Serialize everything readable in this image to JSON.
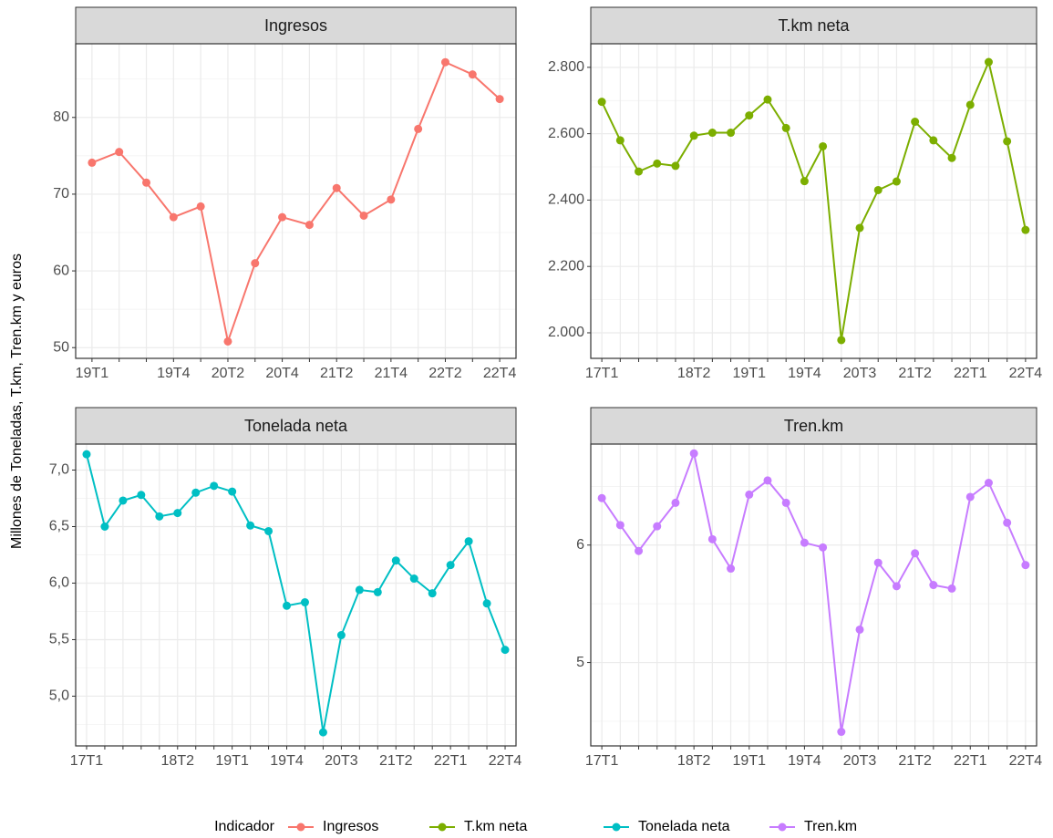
{
  "chart_data": [
    {
      "type": "line",
      "title": "Ingresos",
      "categories": [
        "19T1",
        null,
        null,
        "19T4",
        null,
        "20T2",
        null,
        "20T4",
        null,
        "21T2",
        null,
        "21T4",
        null,
        "22T2",
        null,
        "22T4"
      ],
      "series": [
        {
          "name": "Ingresos",
          "color": "#F8766D",
          "values": [
            74.1,
            75.5,
            71.5,
            67.0,
            68.4,
            50.8,
            61.0,
            67.0,
            66.0,
            70.8,
            67.2,
            69.3,
            78.5,
            87.2,
            85.6,
            82.4
          ]
        }
      ],
      "ylim": [
        48.6,
        89.6
      ],
      "yticks": [
        50,
        60,
        70,
        80
      ],
      "grid": true
    },
    {
      "type": "line",
      "title": "T.km neta",
      "categories": [
        "17T1",
        null,
        null,
        null,
        null,
        "18T2",
        null,
        null,
        "19T1",
        null,
        null,
        "19T4",
        null,
        null,
        "20T3",
        null,
        null,
        "21T2",
        null,
        null,
        "22T1",
        null,
        null,
        "22T4"
      ],
      "series": [
        {
          "name": "T.km neta",
          "color": "#7CAE00",
          "values": [
            2696,
            2580,
            2486,
            2510,
            2503,
            2594,
            2603,
            2603,
            2655,
            2703,
            2617,
            2457,
            2562,
            1978,
            2316,
            2430,
            2456,
            2636,
            2580,
            2527,
            2687,
            2816,
            2577,
            2310
          ]
        }
      ],
      "ylim": [
        1923,
        2871
      ],
      "yticks": [
        {
          "value": 2000,
          "label": "2.000"
        },
        {
          "value": 2200,
          "label": "2.200"
        },
        {
          "value": 2400,
          "label": "2.400"
        },
        {
          "value": 2600,
          "label": "2.600"
        },
        {
          "value": 2800,
          "label": "2.800"
        }
      ],
      "grid": true
    },
    {
      "type": "line",
      "title": "Tonelada neta",
      "categories": [
        "17T1",
        null,
        null,
        null,
        null,
        "18T2",
        null,
        null,
        "19T1",
        null,
        null,
        "19T4",
        null,
        null,
        "20T3",
        null,
        null,
        "21T2",
        null,
        null,
        "22T1",
        null,
        null,
        "22T4"
      ],
      "series": [
        {
          "name": "Tonelada neta",
          "color": "#00BFC4",
          "values": [
            7.14,
            6.5,
            6.73,
            6.78,
            6.59,
            6.62,
            6.8,
            6.86,
            6.81,
            6.51,
            6.46,
            5.8,
            5.83,
            4.68,
            5.54,
            5.94,
            5.92,
            6.2,
            6.04,
            5.91,
            6.16,
            6.37,
            5.82,
            5.41
          ]
        }
      ],
      "ylim": [
        4.56,
        7.23
      ],
      "yticks": [
        {
          "value": 5,
          "label": "5,0"
        },
        {
          "value": 5.5,
          "label": "5,5"
        },
        {
          "value": 6,
          "label": "6,0"
        },
        {
          "value": 6.5,
          "label": "6,5"
        },
        {
          "value": 7,
          "label": "7,0"
        }
      ],
      "grid": true
    },
    {
      "type": "line",
      "title": "Tren.km",
      "categories": [
        "17T1",
        null,
        null,
        null,
        null,
        "18T2",
        null,
        null,
        "19T1",
        null,
        null,
        "19T4",
        null,
        null,
        "20T3",
        null,
        null,
        "21T2",
        null,
        null,
        "22T1",
        null,
        null,
        "22T4"
      ],
      "series": [
        {
          "name": "Tren.km",
          "color": "#C77CFF",
          "values": [
            6.4,
            6.17,
            5.95,
            6.16,
            6.36,
            6.78,
            6.05,
            5.8,
            6.43,
            6.55,
            6.36,
            6.02,
            5.98,
            4.41,
            5.28,
            5.85,
            5.65,
            5.93,
            5.66,
            5.63,
            6.41,
            6.53,
            6.19,
            5.83
          ]
        }
      ],
      "ylim": [
        4.29,
        6.86
      ],
      "yticks": [
        5,
        6
      ],
      "grid": true
    }
  ],
  "y_label": "Millones de Toneladas, T.km, Tren.km y euros",
  "legend": {
    "title": "Indicador"
  }
}
